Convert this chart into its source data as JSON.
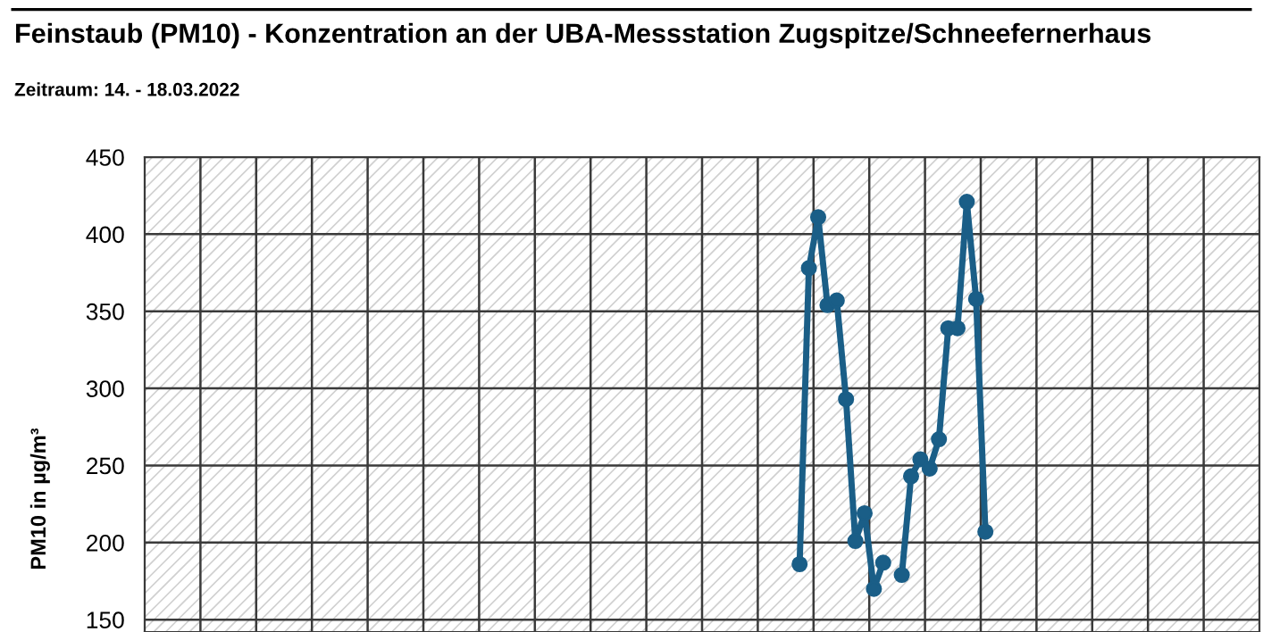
{
  "chart_data": {
    "type": "line",
    "title": "Feinstaub (PM10) - Konzentration an der UBA-Messstation Zugspitze/Schneefernerhaus",
    "subtitle": "Zeitraum: 14. - 18.03.2022",
    "ylabel": "PM10 in µg/m³",
    "categories": [
      null,
      null,
      null,
      null,
      null,
      null,
      null,
      null,
      null,
      null,
      null,
      null,
      null,
      null,
      null,
      null,
      null,
      null,
      null,
      null,
      null,
      null,
      null,
      null,
      null,
      null,
      null,
      null,
      null,
      null,
      null,
      null,
      null,
      null,
      null,
      null,
      null,
      null,
      null,
      null,
      null,
      null,
      null,
      null,
      null,
      null,
      null,
      null,
      null,
      null,
      null,
      null,
      null,
      null,
      null,
      null,
      null,
      null,
      null,
      null,
      null,
      null,
      null,
      null,
      null,
      null,
      null,
      null,
      null,
      null,
      null,
      null,
      null,
      null,
      null,
      null,
      null,
      null,
      null,
      null,
      null,
      null,
      null,
      null,
      null,
      null,
      null,
      null,
      null,
      null,
      null,
      null,
      null,
      null,
      null,
      null,
      null,
      null,
      null,
      null,
      null,
      null,
      null,
      null,
      null,
      null,
      null,
      null,
      null,
      null,
      null,
      null,
      null,
      null,
      null,
      null,
      null,
      null,
      null,
      null
    ],
    "series": [
      {
        "color": "#1a5e87",
        "values": [
          null,
          null,
          null,
          null,
          null,
          null,
          null,
          null,
          null,
          null,
          null,
          null,
          null,
          null,
          null,
          null,
          null,
          null,
          null,
          null,
          null,
          null,
          null,
          null,
          null,
          null,
          null,
          null,
          null,
          null,
          null,
          null,
          null,
          null,
          null,
          null,
          null,
          null,
          null,
          null,
          null,
          null,
          null,
          null,
          null,
          null,
          null,
          null,
          null,
          null,
          null,
          null,
          null,
          null,
          null,
          null,
          null,
          null,
          null,
          null,
          null,
          null,
          null,
          null,
          null,
          null,
          null,
          null,
          null,
          null,
          186,
          378,
          411,
          354,
          357,
          293,
          201,
          219,
          170,
          187,
          null,
          179,
          243,
          254,
          248,
          267,
          339,
          339,
          421,
          358,
          207,
          null,
          null,
          null,
          null,
          null,
          null,
          null,
          null,
          null,
          null,
          null,
          null,
          null,
          null,
          null,
          null,
          null,
          null,
          null,
          null,
          null,
          null,
          null,
          null,
          null,
          null,
          null,
          null,
          null
        ]
      }
    ],
    "ylim": [
      142,
      450
    ],
    "yticks": [
      150,
      200,
      250,
      300,
      350,
      400,
      450
    ],
    "tick_labels": "y",
    "grid": true,
    "marker": "circle",
    "line_style": "solid"
  }
}
